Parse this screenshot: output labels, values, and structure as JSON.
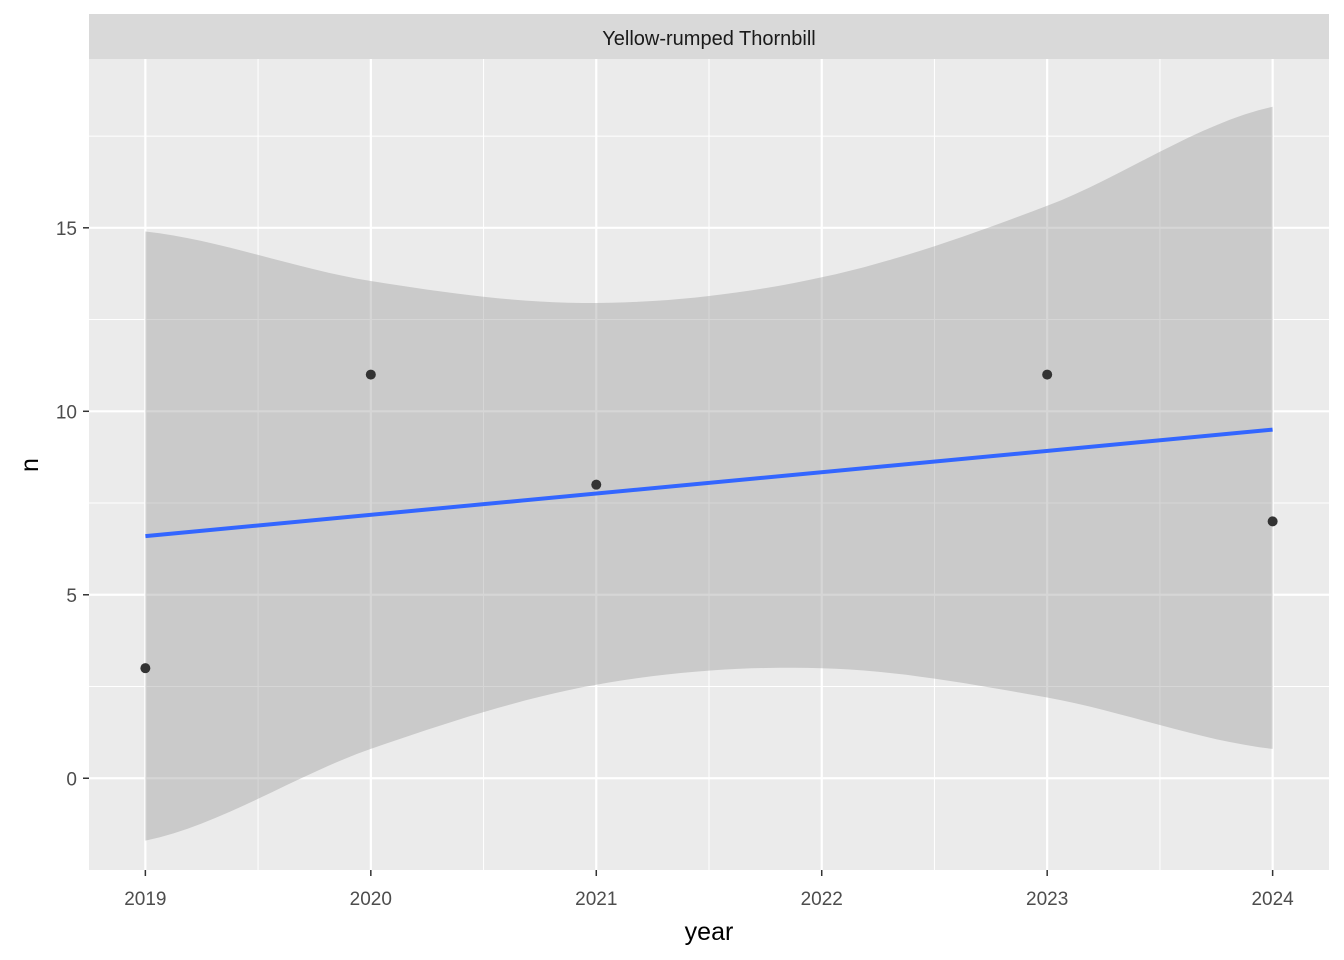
{
  "chart_data": {
    "type": "scatter",
    "facet_title": "Yellow-rumped Thornbill",
    "xlabel": "year",
    "ylabel": "n",
    "xlim": [
      2018.75,
      2024.25
    ],
    "ylim": [
      -2.5,
      19.6
    ],
    "x_ticks": [
      2019,
      2020,
      2021,
      2022,
      2023,
      2024
    ],
    "y_ticks": [
      0,
      5,
      10,
      15
    ],
    "grid": true,
    "points": [
      {
        "x": 2019,
        "y": 3
      },
      {
        "x": 2020,
        "y": 11
      },
      {
        "x": 2021,
        "y": 8
      },
      {
        "x": 2023,
        "y": 11
      },
      {
        "x": 2024,
        "y": 7
      }
    ],
    "smooth": {
      "method": "lm",
      "x": [
        2019,
        2020,
        2021,
        2022,
        2023,
        2024
      ],
      "fit": [
        6.6,
        7.17,
        7.74,
        8.32,
        8.91,
        9.5
      ],
      "lower": [
        -1.7,
        0.8,
        2.55,
        3.0,
        2.2,
        0.8
      ],
      "upper": [
        14.9,
        13.55,
        12.95,
        13.65,
        15.6,
        18.3
      ]
    },
    "colors": {
      "panel_bg": "#EBEBEB",
      "strip_bg": "#D9D9D9",
      "grid": "#FFFFFF",
      "points": "#333333",
      "line": "#3366FF",
      "ribbon": "#999999"
    }
  }
}
